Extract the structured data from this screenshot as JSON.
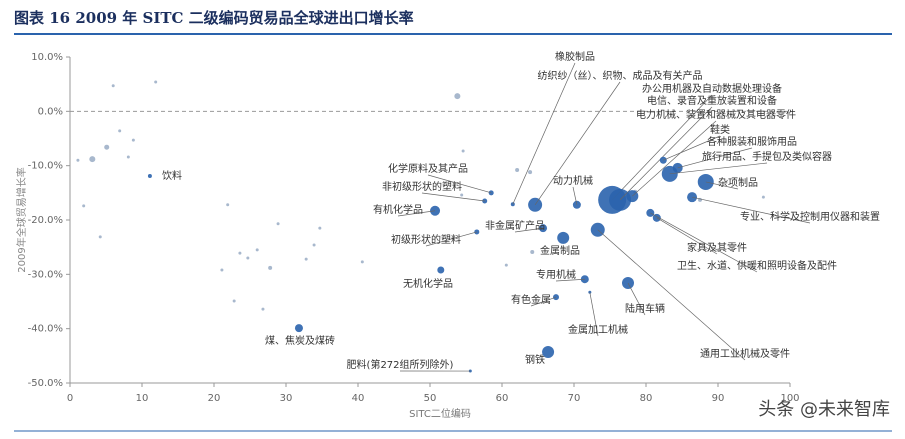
{
  "header": {
    "title": "图表 16   2009 年 SITC 二级编码贸易品全球进出口增长率"
  },
  "watermark": "头条 @未来智库",
  "chart_data": {
    "type": "bubble",
    "x_label": "SITC二位编码",
    "y_label": "2009年全球贸易增长率",
    "xlim": [
      0,
      100
    ],
    "xticks": [
      0,
      10,
      20,
      30,
      40,
      50,
      60,
      70,
      80,
      90,
      100
    ],
    "ylim": [
      -50,
      10
    ],
    "yticks": [
      {
        "value": 10,
        "label": "10.0%"
      },
      {
        "value": 0,
        "label": "0.0%"
      },
      {
        "value": -10,
        "label": "-10.0%"
      },
      {
        "value": -20,
        "label": "-20.0%"
      },
      {
        "value": -30,
        "label": "-30.0%"
      },
      {
        "value": -40,
        "label": "-40.0%"
      },
      {
        "value": -50,
        "label": "-50.0%"
      }
    ],
    "zero_line": true,
    "series": [
      {
        "color": "#2a63ad",
        "x": [
          11.1,
          31.8,
          55.6,
          51.5,
          50.7,
          56.5,
          57.6,
          58.5,
          65.7,
          61.5,
          64.6,
          68.5,
          70.4,
          71.5,
          67.5,
          72.2,
          66.4,
          75.3,
          76.4,
          78.1,
          82.4,
          84.4,
          83.3,
          88.3,
          86.4,
          81.5,
          80.6,
          77.5,
          73.3
        ],
        "values": [
          -11.9,
          -39.9,
          -47.8,
          -29.2,
          -18.3,
          -22.2,
          -16.5,
          -15.0,
          -21.5,
          -17.1,
          -17.2,
          -23.3,
          -17.2,
          -30.9,
          -34.2,
          -33.3,
          -44.3,
          -16.3,
          -16.3,
          -15.6,
          -9.0,
          -10.4,
          -11.5,
          -13.0,
          -15.8,
          -19.6,
          -18.7,
          -31.6,
          -21.8
        ],
        "sizes": [
          2,
          4,
          1.5,
          3.5,
          5,
          2.5,
          2.5,
          2.5,
          4,
          2,
          7,
          6,
          4,
          4,
          3,
          1.5,
          6,
          14,
          11,
          6,
          3.5,
          5,
          8,
          8,
          5,
          4,
          4,
          6,
          7
        ],
        "labels": [
          "饮料",
          "煤、焦炭及煤砖",
          "肥料(第272组所列除外)",
          "无机化学品",
          "有机化学品",
          "初级形状的塑料",
          "非初级形状的塑料",
          "化学原料及其产品",
          "非金属矿产品",
          "橡胶制品",
          "纺织纱（丝）、织物、成品及有关产品",
          "金属制品",
          "动力机械",
          "专用机械",
          "有色金属",
          "金属加工机械",
          "钢铁",
          "办公用机器及自动数据处理设备",
          "电信、录音及重放装置和设备",
          "电力机械、装置和器械及其电器零件",
          "鞋类",
          "各种服装和服饰用品",
          "旅行用品、手提包及类似容器",
          "杂项制品",
          "专业、科学及控制用仪器和装置",
          "家具及其零件",
          "卫生、水道、供暖和照明设备及配件",
          "陆用车辆",
          "通用工业机械及零件"
        ]
      },
      {
        "color": "#9fb0c8",
        "x": [
          6.0,
          11.9,
          3.1,
          5.1,
          6.9,
          8.8,
          8.1,
          1.1,
          1.9,
          4.2,
          21.9,
          21.1,
          22.8,
          23.6,
          24.7,
          26.0,
          26.8,
          27.8,
          28.9,
          32.8,
          33.9,
          34.7,
          40.6,
          53.8,
          54.6,
          54.4,
          62.1,
          63.9,
          64.2,
          60.6,
          78.5,
          87.5,
          96.3
        ],
        "values": [
          4.7,
          5.4,
          -8.8,
          -6.6,
          -3.6,
          -5.3,
          -8.4,
          -9.0,
          -17.4,
          -23.1,
          -17.2,
          -29.2,
          -34.9,
          -26.1,
          -27.0,
          -25.5,
          -36.4,
          -28.8,
          -20.7,
          -27.2,
          -24.6,
          -21.5,
          -27.7,
          2.8,
          -7.3,
          -15.4,
          -10.8,
          -11.2,
          -25.9,
          -28.3,
          -14.8,
          -16.3,
          -15.8
        ],
        "sizes": [
          1.5,
          1.5,
          3,
          2.5,
          1.5,
          1.5,
          1.5,
          1.5,
          1.5,
          1.5,
          1.5,
          1.5,
          1.5,
          1.5,
          1.5,
          1.5,
          1.5,
          2,
          1.5,
          1.5,
          1.5,
          1.5,
          1.5,
          3,
          1.5,
          1.5,
          2,
          2,
          2,
          1.5,
          2,
          2,
          1.5
        ]
      }
    ]
  }
}
